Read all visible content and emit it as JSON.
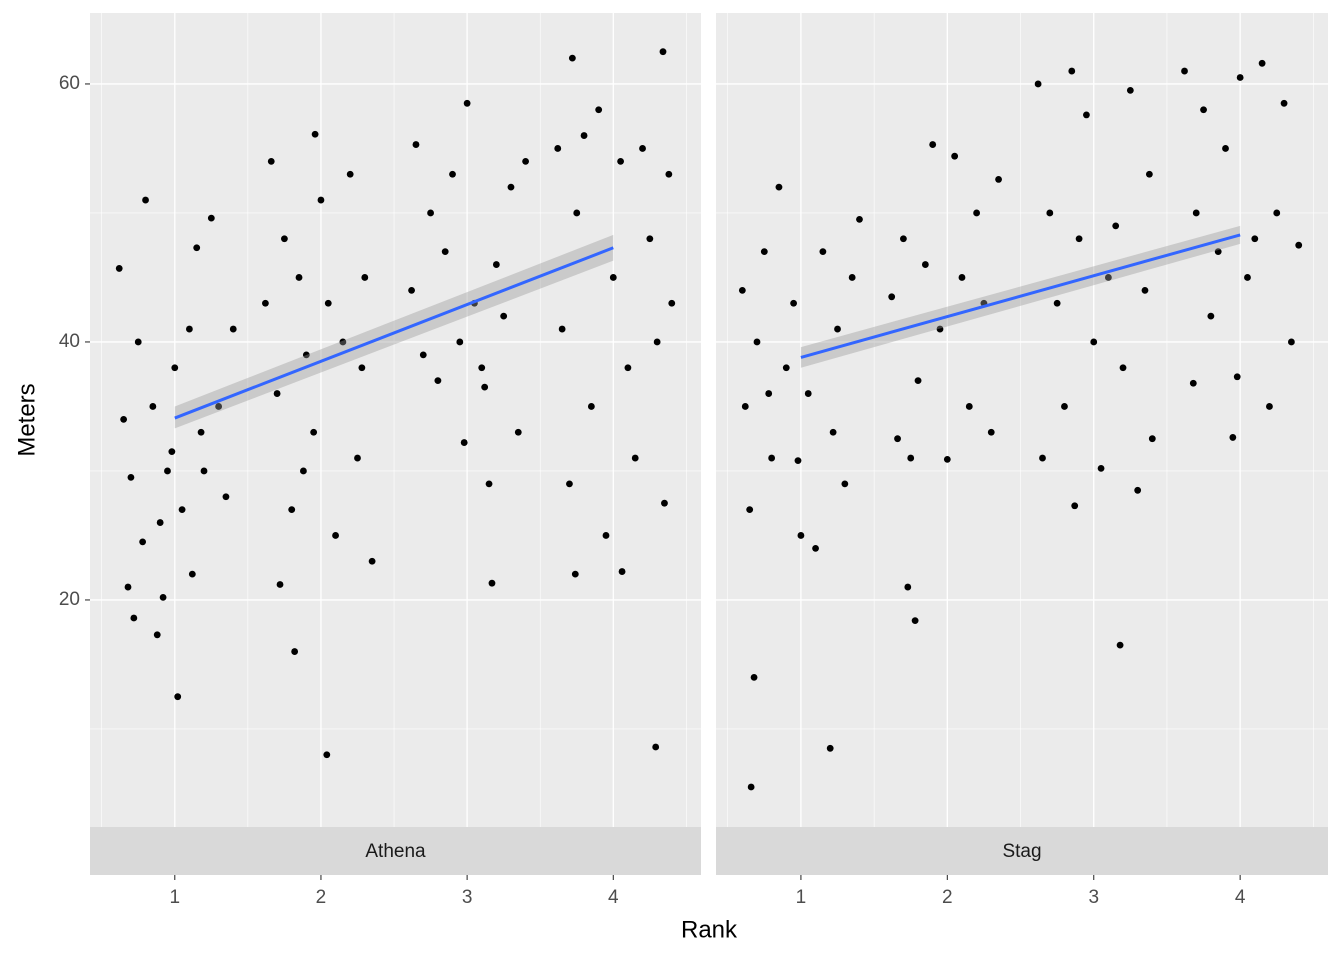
{
  "chart_data": {
    "type": "scatter",
    "xlabel": "Rank",
    "ylabel": "Meters",
    "xlim": [
      0.42,
      4.6
    ],
    "ylim": [
      2.4,
      65.5
    ],
    "xticks": [
      1,
      2,
      3,
      4
    ],
    "yticks": [
      20,
      40,
      60
    ],
    "xminor": [
      0.5,
      1.5,
      2.5,
      3.5,
      4.5
    ],
    "yminor": [
      10,
      30,
      50
    ],
    "grid": true,
    "color": "#000000",
    "fit_color": "#3366ff",
    "panels": [
      {
        "name": "Athena",
        "fit": {
          "x": [
            1,
            4
          ],
          "y": [
            34.1,
            47.3
          ],
          "lower": [
            33.3,
            46.3
          ],
          "upper": [
            35.0,
            48.3
          ]
        },
        "points": [
          [
            0.62,
            45.7
          ],
          [
            0.65,
            34
          ],
          [
            0.7,
            29.5
          ],
          [
            0.75,
            40
          ],
          [
            0.8,
            51
          ],
          [
            0.85,
            35
          ],
          [
            0.9,
            26
          ],
          [
            0.95,
            30
          ],
          [
            1.0,
            38
          ],
          [
            1.05,
            27
          ],
          [
            1.1,
            41
          ],
          [
            1.15,
            47.3
          ],
          [
            1.2,
            30
          ],
          [
            1.25,
            49.6
          ],
          [
            1.3,
            35
          ],
          [
            1.35,
            28
          ],
          [
            1.4,
            41
          ],
          [
            0.68,
            21
          ],
          [
            0.78,
            24.5
          ],
          [
            0.92,
            20.2
          ],
          [
            1.12,
            22
          ],
          [
            1.02,
            12.5
          ],
          [
            0.72,
            18.6
          ],
          [
            0.88,
            17.3
          ],
          [
            1.18,
            33
          ],
          [
            0.98,
            31.5
          ],
          [
            1.62,
            43
          ],
          [
            1.66,
            54
          ],
          [
            1.7,
            36
          ],
          [
            1.75,
            48
          ],
          [
            1.8,
            27
          ],
          [
            1.85,
            45
          ],
          [
            1.9,
            39
          ],
          [
            1.95,
            33
          ],
          [
            2.0,
            51
          ],
          [
            2.05,
            43
          ],
          [
            2.1,
            25
          ],
          [
            2.15,
            40
          ],
          [
            2.2,
            53
          ],
          [
            2.25,
            31
          ],
          [
            2.3,
            45
          ],
          [
            2.35,
            23
          ],
          [
            1.72,
            21.2
          ],
          [
            1.82,
            16
          ],
          [
            2.04,
            8
          ],
          [
            1.96,
            56.1
          ],
          [
            2.28,
            38
          ],
          [
            1.88,
            30
          ],
          [
            2.62,
            44
          ],
          [
            2.65,
            55.3
          ],
          [
            2.7,
            39
          ],
          [
            2.75,
            50
          ],
          [
            2.8,
            37
          ],
          [
            2.85,
            47
          ],
          [
            2.9,
            53
          ],
          [
            2.95,
            40
          ],
          [
            3.0,
            58.5
          ],
          [
            3.05,
            43
          ],
          [
            3.1,
            38
          ],
          [
            3.15,
            29
          ],
          [
            3.17,
            21.3
          ],
          [
            3.2,
            46
          ],
          [
            3.25,
            42
          ],
          [
            3.3,
            52
          ],
          [
            3.35,
            33
          ],
          [
            3.4,
            54
          ],
          [
            2.98,
            32.2
          ],
          [
            3.12,
            36.5
          ],
          [
            3.62,
            55
          ],
          [
            3.65,
            41
          ],
          [
            3.7,
            29
          ],
          [
            3.72,
            62
          ],
          [
            3.75,
            50
          ],
          [
            3.8,
            56
          ],
          [
            3.85,
            35
          ],
          [
            3.9,
            58
          ],
          [
            3.95,
            25
          ],
          [
            4.0,
            45
          ],
          [
            4.05,
            54
          ],
          [
            4.1,
            38
          ],
          [
            4.15,
            31
          ],
          [
            4.2,
            55
          ],
          [
            4.25,
            48
          ],
          [
            4.29,
            8.6
          ],
          [
            4.3,
            40
          ],
          [
            4.34,
            62.5
          ],
          [
            4.38,
            53
          ],
          [
            4.4,
            43
          ],
          [
            3.74,
            22
          ],
          [
            4.06,
            22.2
          ],
          [
            4.35,
            27.5
          ]
        ]
      },
      {
        "name": "Stag",
        "fit": {
          "x": [
            1,
            4
          ],
          "y": [
            38.8,
            48.3
          ],
          "lower": [
            38.0,
            47.6
          ],
          "upper": [
            39.6,
            49.0
          ]
        },
        "points": [
          [
            0.6,
            44
          ],
          [
            0.62,
            35
          ],
          [
            0.65,
            27
          ],
          [
            0.68,
            14
          ],
          [
            0.66,
            5.5
          ],
          [
            0.7,
            40
          ],
          [
            0.75,
            47
          ],
          [
            0.8,
            31
          ],
          [
            0.85,
            52
          ],
          [
            0.9,
            38
          ],
          [
            0.95,
            43
          ],
          [
            1.0,
            25
          ],
          [
            1.05,
            36
          ],
          [
            1.1,
            24
          ],
          [
            1.15,
            47
          ],
          [
            1.2,
            8.5
          ],
          [
            1.22,
            33
          ],
          [
            1.25,
            41
          ],
          [
            1.3,
            29
          ],
          [
            1.35,
            45
          ],
          [
            1.4,
            49.5
          ],
          [
            0.78,
            36
          ],
          [
            0.98,
            30.8
          ],
          [
            1.62,
            43.5
          ],
          [
            1.66,
            32.5
          ],
          [
            1.7,
            48
          ],
          [
            1.73,
            21
          ],
          [
            1.78,
            18.4
          ],
          [
            1.8,
            37
          ],
          [
            1.85,
            46
          ],
          [
            1.9,
            55.3
          ],
          [
            1.95,
            41
          ],
          [
            2.0,
            30.9
          ],
          [
            2.05,
            54.4
          ],
          [
            2.1,
            45
          ],
          [
            2.15,
            35
          ],
          [
            2.2,
            50
          ],
          [
            2.25,
            43
          ],
          [
            2.3,
            33
          ],
          [
            2.35,
            52.6
          ],
          [
            1.75,
            31
          ],
          [
            2.62,
            60
          ],
          [
            2.65,
            31
          ],
          [
            2.7,
            50
          ],
          [
            2.75,
            43
          ],
          [
            2.8,
            35
          ],
          [
            2.85,
            61
          ],
          [
            2.87,
            27.3
          ],
          [
            2.9,
            48
          ],
          [
            2.95,
            57.6
          ],
          [
            3.0,
            40
          ],
          [
            3.05,
            30.2
          ],
          [
            3.1,
            45
          ],
          [
            3.15,
            49
          ],
          [
            3.18,
            16.5
          ],
          [
            3.2,
            38
          ],
          [
            3.25,
            59.5
          ],
          [
            3.3,
            28.5
          ],
          [
            3.35,
            44
          ],
          [
            3.38,
            53
          ],
          [
            3.4,
            32.5
          ],
          [
            3.62,
            61
          ],
          [
            3.68,
            36.8
          ],
          [
            3.7,
            50
          ],
          [
            3.75,
            58
          ],
          [
            3.8,
            42
          ],
          [
            3.85,
            47
          ],
          [
            3.9,
            55
          ],
          [
            3.95,
            32.6
          ],
          [
            4.0,
            60.5
          ],
          [
            4.05,
            45
          ],
          [
            4.1,
            48
          ],
          [
            4.15,
            61.6
          ],
          [
            4.2,
            35
          ],
          [
            4.25,
            50
          ],
          [
            4.3,
            58.5
          ],
          [
            4.35,
            40
          ],
          [
            4.4,
            47.5
          ],
          [
            3.98,
            37.3
          ]
        ]
      }
    ]
  }
}
